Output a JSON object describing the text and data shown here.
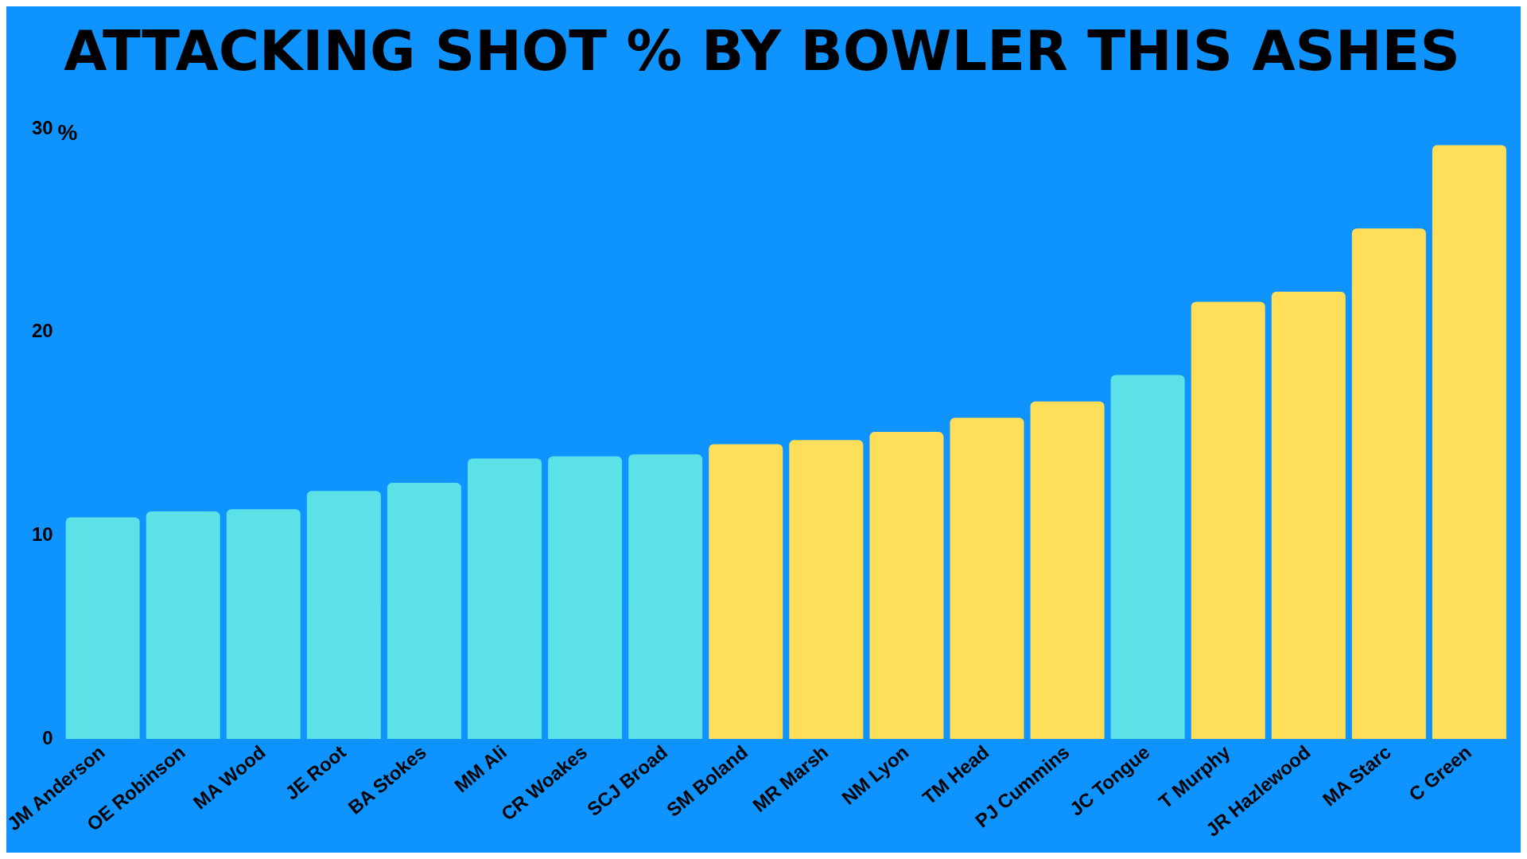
{
  "chart_data": {
    "type": "bar",
    "title": "ATTACKING SHOT % BY BOWLER THIS ASHES",
    "ylabel": "%",
    "categories": [
      "JM Anderson",
      "OE Robinson",
      "MA Wood",
      "JE Root",
      "BA Stokes",
      "MM Ali",
      "CR Woakes",
      "SCJ Broad",
      "SM Boland",
      "MR Marsh",
      "NM Lyon",
      "TM Head",
      "PJ Cummins",
      "JC Tongue",
      "T Murphy",
      "JR Hazlewood",
      "MA Starc",
      "C Green"
    ],
    "values": [
      10.9,
      11.2,
      11.3,
      12.2,
      12.6,
      13.8,
      13.9,
      14.0,
      14.5,
      14.7,
      15.1,
      15.8,
      16.6,
      17.9,
      21.5,
      22.0,
      25.1,
      29.2
    ],
    "colors": [
      "#5ce1e6",
      "#5ce1e6",
      "#5ce1e6",
      "#5ce1e6",
      "#5ce1e6",
      "#5ce1e6",
      "#5ce1e6",
      "#5ce1e6",
      "#ffde59",
      "#ffde59",
      "#ffde59",
      "#ffde59",
      "#ffde59",
      "#5ce1e6",
      "#ffde59",
      "#ffde59",
      "#ffde59",
      "#ffde59"
    ],
    "ylim": [
      0,
      30
    ],
    "yticks": [
      0,
      10,
      20,
      30
    ],
    "grid": false,
    "legend": false
  }
}
